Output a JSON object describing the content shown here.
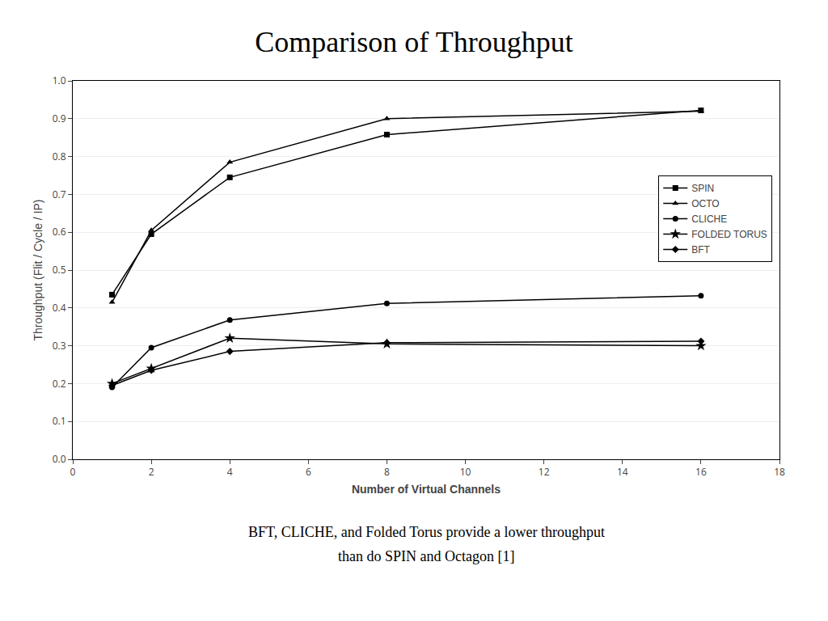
{
  "chart_data": {
    "type": "line",
    "title": "Comparison of Throughput",
    "subtitle": [
      "BFT, CLICHE, and Folded Torus provide a lower throughput",
      "than do SPIN and Octagon [1]"
    ],
    "xlabel": "Number of Virtual Channels",
    "ylabel": "Throughput (Flit / Cycle / IP)",
    "x": [
      1,
      2,
      4,
      8,
      16
    ],
    "series": [
      {
        "name": "SPIN",
        "color": "#000000",
        "marker": "square",
        "values": [
          0.435,
          0.595,
          0.745,
          0.858,
          0.922
        ]
      },
      {
        "name": "OCTO",
        "color": "#000000",
        "marker": "triangle-up",
        "values": [
          0.415,
          0.605,
          0.785,
          0.9,
          0.92
        ]
      },
      {
        "name": "CLICHE",
        "color": "#000000",
        "marker": "circle",
        "values": [
          0.19,
          0.295,
          0.368,
          0.412,
          0.432
        ]
      },
      {
        "name": "FOLDED TORUS",
        "color": "#000000",
        "marker": "star",
        "values": [
          0.2,
          0.24,
          0.32,
          0.305,
          0.3
        ]
      },
      {
        "name": "BFT",
        "color": "#000000",
        "marker": "diamond",
        "values": [
          0.195,
          0.235,
          0.285,
          0.308,
          0.312
        ]
      }
    ],
    "xlim": [
      0,
      18
    ],
    "ylim": [
      0,
      1.0
    ],
    "xticks": [
      0,
      2,
      4,
      6,
      8,
      10,
      12,
      14,
      16,
      18
    ],
    "yticks": [
      {
        "value": 0,
        "label": "0.0"
      },
      0.1,
      0.2,
      0.3,
      0.4,
      0.5,
      0.6,
      0.7,
      0.8,
      0.9,
      {
        "value": 1.0,
        "label": "1.0"
      }
    ],
    "grid": "y",
    "legend": "upper right"
  }
}
